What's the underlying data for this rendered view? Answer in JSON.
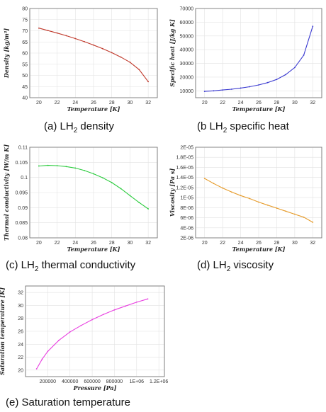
{
  "charts": [
    {
      "caption_pre": "(a) LH",
      "caption_sub": "2",
      "caption_post": " density",
      "chart_data": {
        "type": "line",
        "title": "",
        "xlabel": "Temperature [K]",
        "ylabel": "Density [kg/m³]",
        "xlim": [
          19,
          33
        ],
        "ylim": [
          40,
          80
        ],
        "xticks": [
          "20",
          "22",
          "24",
          "26",
          "28",
          "30",
          "32"
        ],
        "yticks": [
          "40",
          "45",
          "50",
          "55",
          "60",
          "65",
          "70",
          "75",
          "80"
        ],
        "grid": true,
        "color": "#c0392b",
        "x": [
          20,
          21,
          22,
          23,
          24,
          25,
          26,
          27,
          28,
          29,
          30,
          31,
          32
        ],
        "y": [
          71.2,
          70.1,
          69.0,
          67.8,
          66.5,
          65.1,
          63.6,
          62.0,
          60.2,
          58.2,
          55.9,
          52.6,
          47.2
        ]
      }
    },
    {
      "caption_pre": "(b LH",
      "caption_sub": "2",
      "caption_post": " specific heat",
      "chart_data": {
        "type": "line",
        "title": "",
        "xlabel": "Temperature [K]",
        "ylabel": "Specific heat [J/kg K]",
        "xlim": [
          19,
          33
        ],
        "ylim": [
          5000,
          70000
        ],
        "xticks": [
          "20",
          "22",
          "24",
          "26",
          "28",
          "30",
          "32"
        ],
        "yticks": [
          "10000",
          "20000",
          "30000",
          "40000",
          "50000",
          "60000",
          "70000"
        ],
        "grid": true,
        "color": "#3a3ad0",
        "x": [
          20,
          21,
          22,
          23,
          24,
          25,
          26,
          27,
          28,
          29,
          30,
          31,
          32
        ],
        "y": [
          9600,
          10000,
          10600,
          11200,
          12000,
          13000,
          14300,
          16000,
          18300,
          21800,
          27000,
          36000,
          57000
        ]
      }
    },
    {
      "caption_pre": "(c) LH",
      "caption_sub": "2",
      "caption_post": " thermal conductivity",
      "chart_data": {
        "type": "line",
        "title": "",
        "xlabel": "Temperature [K]",
        "ylabel": "Thermal conductivity [W/m K]",
        "xlim": [
          19,
          33
        ],
        "ylim": [
          0.08,
          0.11
        ],
        "xticks": [
          "20",
          "22",
          "24",
          "26",
          "28",
          "30",
          "32"
        ],
        "yticks": [
          "0.08",
          "0.085",
          "0.09",
          "0.095",
          "0.1",
          "0.105",
          "0.11"
        ],
        "grid": true,
        "color": "#2ecc40",
        "x": [
          20,
          21,
          22,
          23,
          24,
          25,
          26,
          27,
          28,
          29,
          30,
          31,
          32
        ],
        "y": [
          0.1038,
          0.104,
          0.1039,
          0.1036,
          0.1031,
          0.1023,
          0.1012,
          0.0999,
          0.0983,
          0.0963,
          0.094,
          0.0917,
          0.0896
        ]
      }
    },
    {
      "caption_pre": "(d) LH",
      "caption_sub": "2",
      "caption_post": " viscosity",
      "chart_data": {
        "type": "line",
        "title": "",
        "xlabel": "Temperature [K]",
        "ylabel": "Viscosity [Pa s]",
        "xlim": [
          19,
          33
        ],
        "ylim": [
          2e-06,
          2e-05
        ],
        "xticks": [
          "20",
          "22",
          "24",
          "26",
          "28",
          "30",
          "32"
        ],
        "yticks": [
          "2E-06",
          "4E-06",
          "6E-06",
          "8E-06",
          "1E-05",
          "1.2E-05",
          "1.4E-05",
          "1.6E-05",
          "1.8E-05",
          "2E-05"
        ],
        "grid": true,
        "color": "#e69b2a",
        "x": [
          20,
          21,
          22,
          23,
          24,
          25,
          26,
          27,
          28,
          29,
          30,
          31,
          32
        ],
        "y": [
          1.38e-05,
          1.28e-05,
          1.19e-05,
          1.11e-05,
          1.04e-05,
          9.8e-06,
          9.1e-06,
          8.5e-06,
          7.9e-06,
          7.3e-06,
          6.7e-06,
          6.1e-06,
          5.1e-06
        ]
      }
    },
    {
      "caption_pre": "(e) Saturation temperature",
      "caption_sub": "",
      "caption_post": "",
      "chart_data": {
        "type": "line",
        "title": "",
        "xlabel": "Pressure [Pa]",
        "ylabel": "Saturation temperature [K]",
        "xlim": [
          0,
          1250000
        ],
        "ylim": [
          19,
          33
        ],
        "xticks": [
          "200000",
          "400000",
          "600000",
          "800000",
          "1E+06",
          "1.2E+06"
        ],
        "xtick_values": [
          200000,
          400000,
          600000,
          800000,
          1000000,
          1200000
        ],
        "yticks": [
          "20",
          "22",
          "24",
          "26",
          "28",
          "30",
          "32"
        ],
        "grid": true,
        "color": "#e83fe0",
        "x": [
          100000,
          150000,
          200000,
          300000,
          400000,
          500000,
          600000,
          700000,
          800000,
          900000,
          1000000,
          1100000
        ],
        "y": [
          20.2,
          21.7,
          22.9,
          24.6,
          25.9,
          26.9,
          27.8,
          28.6,
          29.3,
          29.9,
          30.5,
          31.0
        ]
      }
    }
  ]
}
